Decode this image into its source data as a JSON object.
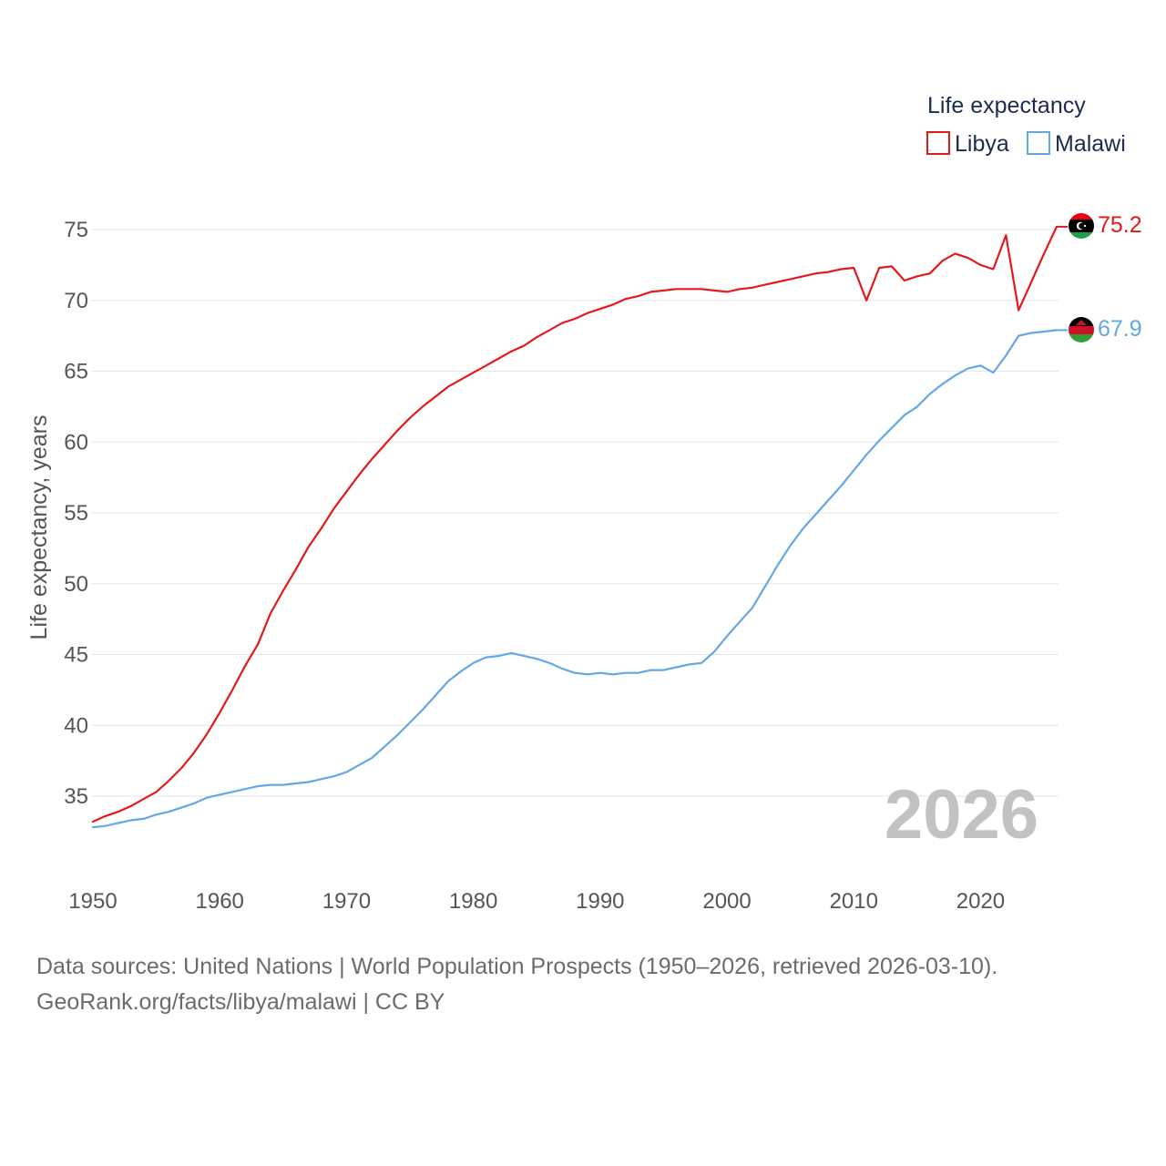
{
  "chart_data": {
    "type": "line",
    "title": "",
    "legend_title": "Life expectancy",
    "ylabel": "Life expectancy, years",
    "xlabel": "",
    "xlim": [
      1950,
      2026
    ],
    "ylim": [
      31,
      77
    ],
    "x_ticks": [
      1950,
      1960,
      1970,
      1980,
      1990,
      2000,
      2010,
      2020
    ],
    "y_ticks": [
      35,
      40,
      45,
      50,
      55,
      60,
      65,
      70,
      75
    ],
    "grid": true,
    "legend_position": "top-right",
    "current_year_label": "2026",
    "x": [
      1950,
      1951,
      1952,
      1953,
      1954,
      1955,
      1956,
      1957,
      1958,
      1959,
      1960,
      1961,
      1962,
      1963,
      1964,
      1965,
      1966,
      1967,
      1968,
      1969,
      1970,
      1971,
      1972,
      1973,
      1974,
      1975,
      1976,
      1977,
      1978,
      1979,
      1980,
      1981,
      1982,
      1983,
      1984,
      1985,
      1986,
      1987,
      1988,
      1989,
      1990,
      1991,
      1992,
      1993,
      1994,
      1995,
      1996,
      1997,
      1998,
      1999,
      2000,
      2001,
      2002,
      2003,
      2004,
      2005,
      2006,
      2007,
      2008,
      2009,
      2010,
      2011,
      2012,
      2013,
      2014,
      2015,
      2016,
      2017,
      2018,
      2019,
      2020,
      2021,
      2022,
      2023,
      2024,
      2025,
      2026
    ],
    "series": [
      {
        "name": "Libya",
        "color": "#e31a1c",
        "end_label": "75.2",
        "flag": "libya-flag",
        "values": [
          33.2,
          33.6,
          33.9,
          34.3,
          34.8,
          35.3,
          36.1,
          37.0,
          38.1,
          39.4,
          40.9,
          42.5,
          44.2,
          45.7,
          47.9,
          49.5,
          51.0,
          52.6,
          53.9,
          55.3,
          56.5,
          57.7,
          58.8,
          59.8,
          60.8,
          61.7,
          62.5,
          63.2,
          63.9,
          64.4,
          64.9,
          65.4,
          65.9,
          66.4,
          66.8,
          67.4,
          67.9,
          68.4,
          68.7,
          69.1,
          69.4,
          69.7,
          70.1,
          70.3,
          70.6,
          70.7,
          70.8,
          70.8,
          70.8,
          70.7,
          70.6,
          70.8,
          70.9,
          71.1,
          71.3,
          71.5,
          71.7,
          71.9,
          72.0,
          72.2,
          72.3,
          70.0,
          72.3,
          72.4,
          71.4,
          71.7,
          71.9,
          72.8,
          73.3,
          73.0,
          72.5,
          72.2,
          74.6,
          69.3,
          71.3,
          73.3,
          75.2
        ]
      },
      {
        "name": "Malawi",
        "color": "#64a7e6",
        "end_label": "67.9",
        "flag": "malawi-flag",
        "values": [
          32.8,
          32.9,
          33.1,
          33.3,
          33.4,
          33.7,
          33.9,
          34.2,
          34.5,
          34.9,
          35.1,
          35.3,
          35.5,
          35.7,
          35.8,
          35.8,
          35.9,
          36.0,
          36.2,
          36.4,
          36.7,
          37.2,
          37.7,
          38.5,
          39.3,
          40.2,
          41.1,
          42.1,
          43.1,
          43.8,
          44.4,
          44.8,
          44.9,
          45.1,
          44.9,
          44.7,
          44.4,
          44.0,
          43.7,
          43.6,
          43.7,
          43.6,
          43.7,
          43.7,
          43.9,
          43.9,
          44.1,
          44.3,
          44.4,
          45.2,
          46.3,
          47.3,
          48.3,
          49.8,
          51.3,
          52.7,
          53.9,
          54.9,
          55.9,
          56.9,
          58.0,
          59.1,
          60.1,
          61.0,
          61.9,
          62.5,
          63.4,
          64.1,
          64.7,
          65.2,
          65.4,
          64.9,
          66.1,
          67.5,
          67.7,
          67.8,
          67.9
        ]
      }
    ]
  },
  "footer": {
    "source_line": "Data sources: United Nations | World Population Prospects (1950–2026, retrieved 2026-03-10).",
    "attribution_line": "GeoRank.org/facts/libya/malawi | CC BY"
  }
}
